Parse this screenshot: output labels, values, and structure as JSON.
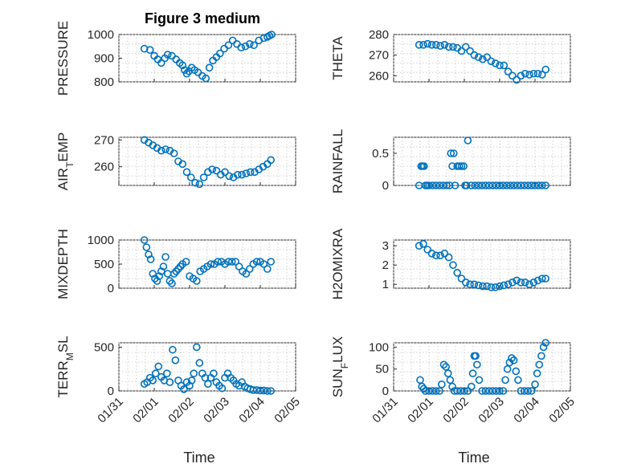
{
  "figure": {
    "title": "Figure 3 medium",
    "marker_color": "#0072BD"
  },
  "chart_data": [
    {
      "type": "scatter",
      "title": "Figure 3 medium",
      "xlabel": "",
      "ylabel": "PRESSURE",
      "xlim": [
        0,
        5
      ],
      "ylim": [
        800,
        1000
      ],
      "yticks": [
        800,
        900,
        1000
      ],
      "xticks": [
        0,
        1,
        2,
        3,
        4,
        5
      ],
      "xticklabels": [
        "01/31",
        "02/01",
        "02/02",
        "02/03",
        "02/04",
        "02/05"
      ],
      "show_xticklabels": false,
      "grid": true,
      "series": [
        {
          "x": [
            0.72,
            0.88,
            1.0,
            1.1,
            1.2,
            1.3,
            1.38,
            1.5,
            1.62,
            1.72,
            1.8,
            1.86,
            1.92,
            1.98,
            2.06,
            2.14,
            2.24,
            2.36,
            2.46,
            2.56,
            2.66,
            2.76,
            2.86,
            2.98,
            3.1,
            3.22,
            3.34,
            3.46,
            3.58,
            3.7,
            3.82,
            3.96,
            4.1,
            4.2,
            4.26,
            4.32
          ],
          "y": [
            940,
            935,
            910,
            895,
            880,
            900,
            915,
            910,
            895,
            880,
            870,
            850,
            835,
            845,
            860,
            850,
            840,
            825,
            815,
            860,
            890,
            905,
            920,
            940,
            955,
            975,
            960,
            945,
            950,
            960,
            955,
            975,
            985,
            990,
            995,
            1000
          ]
        }
      ]
    },
    {
      "type": "scatter",
      "xlabel": "",
      "ylabel": "THETA",
      "xlim": [
        0,
        5
      ],
      "ylim": [
        257,
        280
      ],
      "yticks": [
        260,
        270,
        280
      ],
      "xticks": [
        0,
        1,
        2,
        3,
        4,
        5
      ],
      "xticklabels": [
        "01/31",
        "02/01",
        "02/02",
        "02/03",
        "02/04",
        "02/05"
      ],
      "show_xticklabels": false,
      "grid": true,
      "series": [
        {
          "x": [
            0.72,
            0.84,
            0.96,
            1.08,
            1.2,
            1.32,
            1.44,
            1.56,
            1.68,
            1.8,
            1.92,
            2.04,
            2.16,
            2.28,
            2.4,
            2.52,
            2.64,
            2.76,
            2.88,
            3.0,
            3.12,
            3.24,
            3.36,
            3.48,
            3.6,
            3.72,
            3.84,
            3.96,
            4.08,
            4.2,
            4.3
          ],
          "y": [
            275,
            275,
            275.5,
            275,
            275,
            274.5,
            275,
            274,
            274,
            273.5,
            272,
            274,
            272,
            270,
            269,
            268,
            269,
            267,
            266,
            265,
            265,
            262,
            260,
            258,
            260,
            261,
            260.5,
            261,
            261,
            260.5,
            263
          ]
        }
      ]
    },
    {
      "type": "scatter",
      "xlabel": "",
      "ylabel": "AIR_TEMP",
      "xlim": [
        0,
        5
      ],
      "ylim": [
        253,
        271
      ],
      "yticks": [
        260,
        270
      ],
      "xticks": [
        0,
        1,
        2,
        3,
        4,
        5
      ],
      "xticklabels": [
        "01/31",
        "02/01",
        "02/02",
        "02/03",
        "02/04",
        "02/05"
      ],
      "show_xticklabels": false,
      "grid": true,
      "series": [
        {
          "x": [
            0.72,
            0.84,
            0.96,
            1.08,
            1.2,
            1.32,
            1.44,
            1.56,
            1.68,
            1.8,
            1.92,
            2.04,
            2.16,
            2.28,
            2.4,
            2.52,
            2.64,
            2.76,
            2.88,
            3.0,
            3.12,
            3.24,
            3.36,
            3.48,
            3.6,
            3.72,
            3.84,
            3.96,
            4.08,
            4.2,
            4.3
          ],
          "y": [
            270,
            269,
            268,
            267,
            266,
            266.5,
            266,
            265,
            262,
            261,
            258,
            256,
            254,
            253.5,
            256,
            258,
            259,
            258.5,
            257,
            258,
            256.5,
            256,
            257,
            257,
            257.5,
            258,
            258,
            259,
            260,
            261,
            262.5
          ]
        }
      ]
    },
    {
      "type": "scatter",
      "xlabel": "",
      "ylabel": "RAINFALL",
      "xlim": [
        0,
        5
      ],
      "ylim": [
        0,
        0.75
      ],
      "yticks": [
        0,
        0.5
      ],
      "xticks": [
        0,
        1,
        2,
        3,
        4,
        5
      ],
      "xticklabels": [
        "01/31",
        "02/01",
        "02/02",
        "02/03",
        "02/04",
        "02/05"
      ],
      "show_xticklabels": false,
      "grid": true,
      "series": [
        {
          "x": [
            0.72,
            0.78,
            0.82,
            0.86,
            0.9,
            0.95,
            1.0,
            1.1,
            1.2,
            1.3,
            1.4,
            1.5,
            1.58,
            1.62,
            1.66,
            1.7,
            1.74,
            1.8,
            1.86,
            1.92,
            1.98,
            2.02,
            2.06,
            2.1,
            2.2,
            2.3,
            2.4,
            2.5,
            2.6,
            2.7,
            2.8,
            2.9,
            3.0,
            3.1,
            3.2,
            3.3,
            3.4,
            3.5,
            3.6,
            3.7,
            3.8,
            3.9,
            4.0,
            4.1,
            4.2,
            4.3
          ],
          "y": [
            0,
            0.3,
            0.3,
            0.3,
            0,
            0,
            0,
            0,
            0,
            0,
            0,
            0,
            0,
            0.5,
            0.3,
            0.5,
            0,
            0.3,
            0.3,
            0.3,
            0.3,
            0,
            0,
            0.7,
            0,
            0,
            0,
            0,
            0,
            0,
            0,
            0,
            0,
            0,
            0,
            0,
            0,
            0,
            0,
            0,
            0,
            0,
            0,
            0,
            0,
            0
          ]
        }
      ]
    },
    {
      "type": "scatter",
      "xlabel": "",
      "ylabel": "MIXDEPTH",
      "xlim": [
        0,
        5
      ],
      "ylim": [
        0,
        1000
      ],
      "yticks": [
        0,
        500,
        1000
      ],
      "xticks": [
        0,
        1,
        2,
        3,
        4,
        5
      ],
      "xticklabels": [
        "01/31",
        "02/01",
        "02/02",
        "02/03",
        "02/04",
        "02/05"
      ],
      "show_xticklabels": false,
      "grid": true,
      "series": [
        {
          "x": [
            0.72,
            0.78,
            0.84,
            0.9,
            0.96,
            1.02,
            1.08,
            1.14,
            1.2,
            1.26,
            1.32,
            1.38,
            1.44,
            1.5,
            1.56,
            1.62,
            1.68,
            1.74,
            1.8,
            1.9,
            2.0,
            2.1,
            2.2,
            2.3,
            2.4,
            2.5,
            2.6,
            2.7,
            2.8,
            2.9,
            3.0,
            3.1,
            3.2,
            3.3,
            3.4,
            3.5,
            3.6,
            3.7,
            3.8,
            3.9,
            4.0,
            4.1,
            4.2,
            4.3
          ],
          "y": [
            1000,
            850,
            700,
            600,
            300,
            200,
            150,
            250,
            350,
            450,
            650,
            300,
            150,
            100,
            300,
            350,
            400,
            450,
            500,
            550,
            250,
            200,
            150,
            350,
            400,
            450,
            500,
            500,
            550,
            550,
            500,
            550,
            550,
            550,
            450,
            350,
            300,
            400,
            500,
            550,
            550,
            500,
            400,
            550
          ]
        }
      ]
    },
    {
      "type": "scatter",
      "xlabel": "",
      "ylabel": "H2OMIXRA",
      "xlim": [
        0,
        5
      ],
      "ylim": [
        0.8,
        3.3
      ],
      "yticks": [
        1,
        2,
        3
      ],
      "xticks": [
        0,
        1,
        2,
        3,
        4,
        5
      ],
      "xticklabels": [
        "01/31",
        "02/01",
        "02/02",
        "02/03",
        "02/04",
        "02/05"
      ],
      "show_xticklabels": false,
      "grid": true,
      "series": [
        {
          "x": [
            0.72,
            0.84,
            0.96,
            1.08,
            1.2,
            1.32,
            1.44,
            1.56,
            1.68,
            1.8,
            1.92,
            2.04,
            2.16,
            2.28,
            2.4,
            2.52,
            2.64,
            2.76,
            2.88,
            3.0,
            3.12,
            3.24,
            3.36,
            3.48,
            3.6,
            3.72,
            3.84,
            3.96,
            4.08,
            4.2,
            4.3
          ],
          "y": [
            3.0,
            3.1,
            2.8,
            2.6,
            2.5,
            2.5,
            2.6,
            2.4,
            2.0,
            1.6,
            1.3,
            1.1,
            1.0,
            1.0,
            0.95,
            0.9,
            0.9,
            0.85,
            0.85,
            0.9,
            0.95,
            1.0,
            1.1,
            1.2,
            1.1,
            1.1,
            1.0,
            1.1,
            1.2,
            1.3,
            1.3
          ]
        }
      ]
    },
    {
      "type": "scatter",
      "xlabel": "Time",
      "ylabel": "TERR_MSL",
      "xlim": [
        0,
        5
      ],
      "ylim": [
        0,
        550
      ],
      "yticks": [
        0,
        500
      ],
      "xticks": [
        0,
        1,
        2,
        3,
        4,
        5
      ],
      "xticklabels": [
        "01/31",
        "02/01",
        "02/02",
        "02/03",
        "02/04",
        "02/05"
      ],
      "show_xticklabels": true,
      "grid": true,
      "series": [
        {
          "x": [
            0.72,
            0.8,
            0.88,
            0.96,
            1.04,
            1.12,
            1.2,
            1.28,
            1.36,
            1.44,
            1.52,
            1.6,
            1.68,
            1.76,
            1.84,
            1.92,
            2.0,
            2.06,
            2.12,
            2.2,
            2.28,
            2.36,
            2.44,
            2.52,
            2.6,
            2.68,
            2.76,
            2.84,
            2.92,
            3.0,
            3.08,
            3.16,
            3.24,
            3.32,
            3.4,
            3.48,
            3.56,
            3.64,
            3.72,
            3.8,
            3.9,
            4.0,
            4.1,
            4.2,
            4.3
          ],
          "y": [
            80,
            100,
            150,
            120,
            200,
            280,
            160,
            120,
            200,
            100,
            470,
            350,
            120,
            60,
            20,
            100,
            60,
            120,
            200,
            500,
            320,
            200,
            150,
            80,
            150,
            200,
            100,
            60,
            30,
            150,
            200,
            150,
            120,
            80,
            60,
            100,
            50,
            30,
            20,
            10,
            10,
            5,
            5,
            0,
            0
          ]
        }
      ]
    },
    {
      "type": "scatter",
      "xlabel": "Time",
      "ylabel": "SUN_FLUX",
      "xlim": [
        0,
        5
      ],
      "ylim": [
        0,
        110
      ],
      "yticks": [
        0,
        50,
        100
      ],
      "xticks": [
        0,
        1,
        2,
        3,
        4,
        5
      ],
      "xticklabels": [
        "01/31",
        "02/01",
        "02/02",
        "02/03",
        "02/04",
        "02/05"
      ],
      "show_xticklabels": true,
      "grid": true,
      "series": [
        {
          "x": [
            0.75,
            0.8,
            0.85,
            0.9,
            1.0,
            1.1,
            1.2,
            1.3,
            1.36,
            1.42,
            1.48,
            1.54,
            1.6,
            1.66,
            1.72,
            1.8,
            1.9,
            2.0,
            2.1,
            2.2,
            2.24,
            2.28,
            2.32,
            2.36,
            2.42,
            2.5,
            2.6,
            2.7,
            2.8,
            2.9,
            3.0,
            3.1,
            3.16,
            3.22,
            3.28,
            3.34,
            3.4,
            3.46,
            3.52,
            3.6,
            3.7,
            3.8,
            3.9,
            4.0,
            4.06,
            4.12,
            4.18,
            4.24,
            4.3
          ],
          "y": [
            25,
            10,
            5,
            0,
            0,
            0,
            0,
            0,
            15,
            60,
            55,
            40,
            25,
            10,
            0,
            0,
            0,
            0,
            0,
            10,
            40,
            80,
            80,
            60,
            25,
            0,
            0,
            0,
            0,
            0,
            0,
            0,
            25,
            50,
            65,
            75,
            70,
            45,
            25,
            0,
            0,
            0,
            0,
            15,
            40,
            60,
            80,
            100,
            110
          ]
        }
      ]
    }
  ]
}
